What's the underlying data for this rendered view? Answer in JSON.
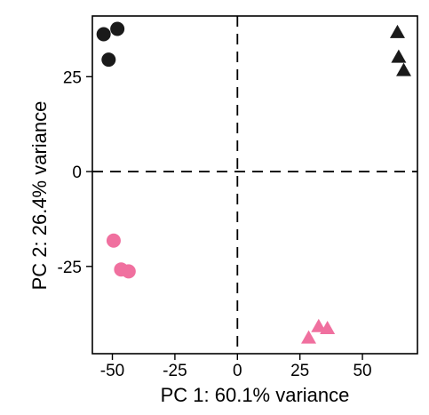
{
  "chart_data": {
    "type": "scatter",
    "xlabel": "PC 1: 60.1% variance",
    "ylabel": "PC 2: 26.4% variance",
    "xlim": [
      -58,
      72
    ],
    "ylim": [
      -48,
      41
    ],
    "x_ticks": [
      {
        "value": -50,
        "label": "-50"
      },
      {
        "value": -25,
        "label": "-25"
      },
      {
        "value": 0,
        "label": "0"
      },
      {
        "value": 25,
        "label": "25"
      },
      {
        "value": 50,
        "label": "50"
      }
    ],
    "y_ticks": [
      {
        "value": 25,
        "label": "25"
      },
      {
        "value": 0,
        "label": "0"
      },
      {
        "value": -25,
        "label": "-25"
      }
    ],
    "reference_lines": {
      "x": 0,
      "y": 0,
      "style": "dashed"
    },
    "grid": false,
    "series": [
      {
        "marker": "circle",
        "color": "#1a1a1a",
        "points": [
          {
            "x": -53.5,
            "y": 36.2
          },
          {
            "x": -48.0,
            "y": 37.6
          },
          {
            "x": -51.5,
            "y": 29.5
          }
        ]
      },
      {
        "marker": "triangle",
        "color": "#1a1a1a",
        "points": [
          {
            "x": 64.0,
            "y": 36.5
          },
          {
            "x": 64.5,
            "y": 30.0
          },
          {
            "x": 66.5,
            "y": 26.5
          }
        ]
      },
      {
        "marker": "circle",
        "color": "#f0709f",
        "points": [
          {
            "x": -49.5,
            "y": -18.2
          },
          {
            "x": -46.5,
            "y": -25.8
          },
          {
            "x": -43.5,
            "y": -26.3
          }
        ]
      },
      {
        "marker": "triangle",
        "color": "#f0709f",
        "points": [
          {
            "x": 28.5,
            "y": -44.0
          },
          {
            "x": 32.5,
            "y": -41.0
          },
          {
            "x": 36.0,
            "y": -41.5
          }
        ]
      }
    ]
  }
}
